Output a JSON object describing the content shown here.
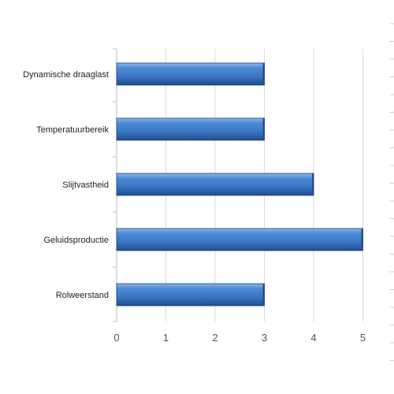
{
  "chart_data": {
    "type": "bar",
    "orientation": "horizontal",
    "categories": [
      "Dynamische draaglast",
      "Temperatuurbereik",
      "Slijtvastheid",
      "Geluidsproductie",
      "Rolweerstand"
    ],
    "values": [
      3,
      3,
      4,
      5,
      3
    ],
    "xticks": [
      "0",
      "1",
      "2",
      "3",
      "4",
      "5"
    ],
    "xlim": [
      0,
      5
    ],
    "grid": true,
    "legend": "none",
    "title": "",
    "xlabel": "",
    "ylabel": "",
    "bar_color": "#3f7fce",
    "bar_edge_color": "#1f3f6e"
  }
}
